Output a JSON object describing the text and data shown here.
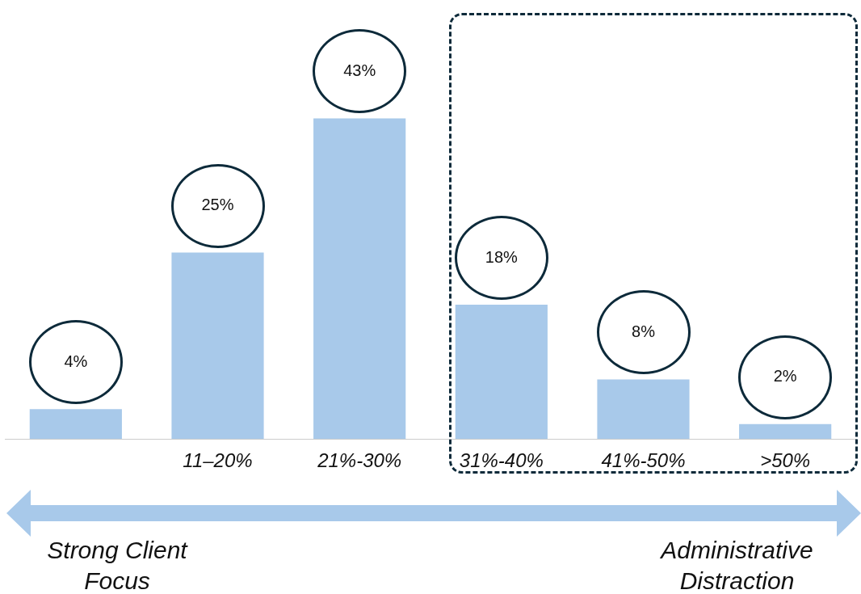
{
  "chart_data": {
    "type": "bar",
    "categories": [
      null,
      "11–20%",
      "21%-30%",
      "31%-40%",
      "41%-50%",
      ">50%"
    ],
    "values": [
      4,
      25,
      43,
      18,
      8,
      2
    ],
    "color": "#a8c9ea",
    "value_labels": [
      "4%",
      "25%",
      "43%",
      "18%",
      "8%",
      "2%"
    ],
    "grid": false,
    "legend": false,
    "tick_labels": "x",
    "annotations": [
      "Strong Client Focus",
      "Administrative Distraction"
    ]
  }
}
